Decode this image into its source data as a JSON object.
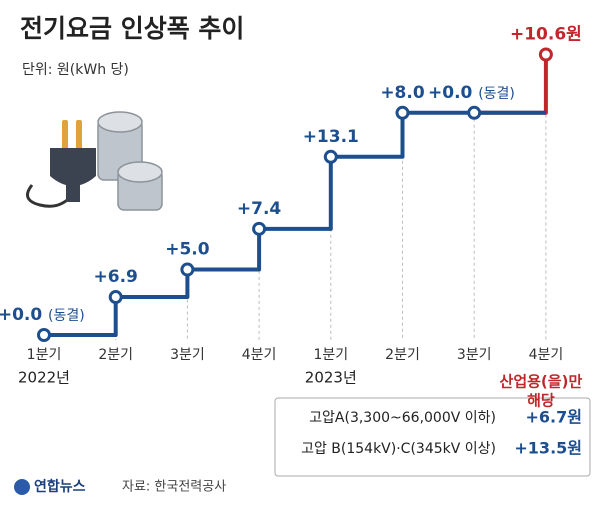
{
  "chart_data": {
    "type": "step",
    "title": "전기요금 인상폭 추이",
    "subtitle": "단위: 원(kWh 당)",
    "categories": [
      "1분기",
      "2분기",
      "3분기",
      "4분기",
      "1분기",
      "2분기",
      "3분기",
      "4분기"
    ],
    "year_labels": [
      "2022년",
      null,
      null,
      null,
      "2023년",
      null,
      null,
      null
    ],
    "values": [
      0.0,
      6.9,
      5.0,
      7.4,
      13.1,
      8.0,
      0.0,
      10.6
    ],
    "value_labels": [
      "+0.0",
      "+6.9",
      "+5.0",
      "+7.4",
      "+13.1",
      "+8.0",
      "+0.0",
      "+10.6원"
    ],
    "notes": [
      "(동결)",
      null,
      null,
      null,
      null,
      null,
      "(동결)",
      null
    ],
    "color": "#1d4f8f",
    "point_colors": [
      "#1d4f8f",
      "#1d4f8f",
      "#1d4f8f",
      "#1d4f8f",
      "#1d4f8f",
      "#1d4f8f",
      "#1d4f8f",
      "#c0272d"
    ],
    "annotation": [
      "산업용(을)만",
      "해당"
    ],
    "breakdown": [
      {
        "label": "고압A(3,300~66,000V 이하)",
        "value_label": "+6.7원"
      },
      {
        "label": "고압 B(154kV)·C(345kV 이상)",
        "value_label": "+13.5원"
      }
    ],
    "source": "자료: 한국전력공사",
    "logo": "연합뉴스"
  }
}
